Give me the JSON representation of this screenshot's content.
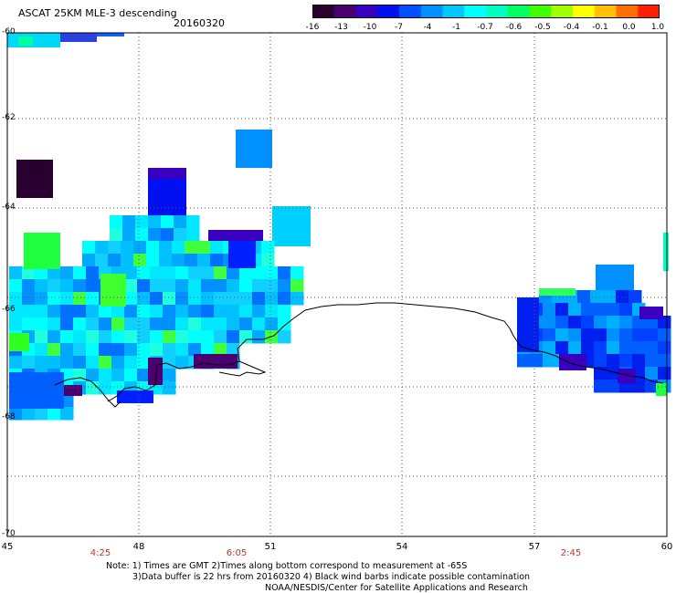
{
  "header": {
    "title": "ASCAT 25KM MLE-3 descending",
    "date": "20160320"
  },
  "colorbar": {
    "stops": [
      "#2a0030",
      "#4b0070",
      "#3a00c0",
      "#0010f0",
      "#0050ff",
      "#0090ff",
      "#00c8ff",
      "#00ffff",
      "#00ffc0",
      "#00ff60",
      "#40ff00",
      "#a0ff00",
      "#ffff00",
      "#ffc000",
      "#ff7000",
      "#ff2000"
    ],
    "tick_labels": [
      "-16",
      "-13",
      "-10",
      "-7",
      "-4",
      "-1",
      "-0.7",
      "-0.6",
      "-0.5",
      "-0.4",
      "-0.1",
      "0.0",
      "1.0"
    ]
  },
  "axes": {
    "y_labels": [
      "-60",
      "-62",
      "-64",
      "-66",
      "-68",
      "-70"
    ],
    "x_labels": [
      "45",
      "48",
      "51",
      "54",
      "57",
      "60"
    ],
    "time_labels": [
      "4:25",
      "6:05",
      "2:45"
    ]
  },
  "notes": {
    "line1": "Note: 1) Times are GMT 2)Times along bottom correspond to measurement at -65S",
    "line2": "3)Data buffer is 22 hrs from 20160320 4) Black wind barbs indicate possible contamination",
    "line3": "NOAA/NESDIS/Center for Satellite Applications and Research"
  }
}
